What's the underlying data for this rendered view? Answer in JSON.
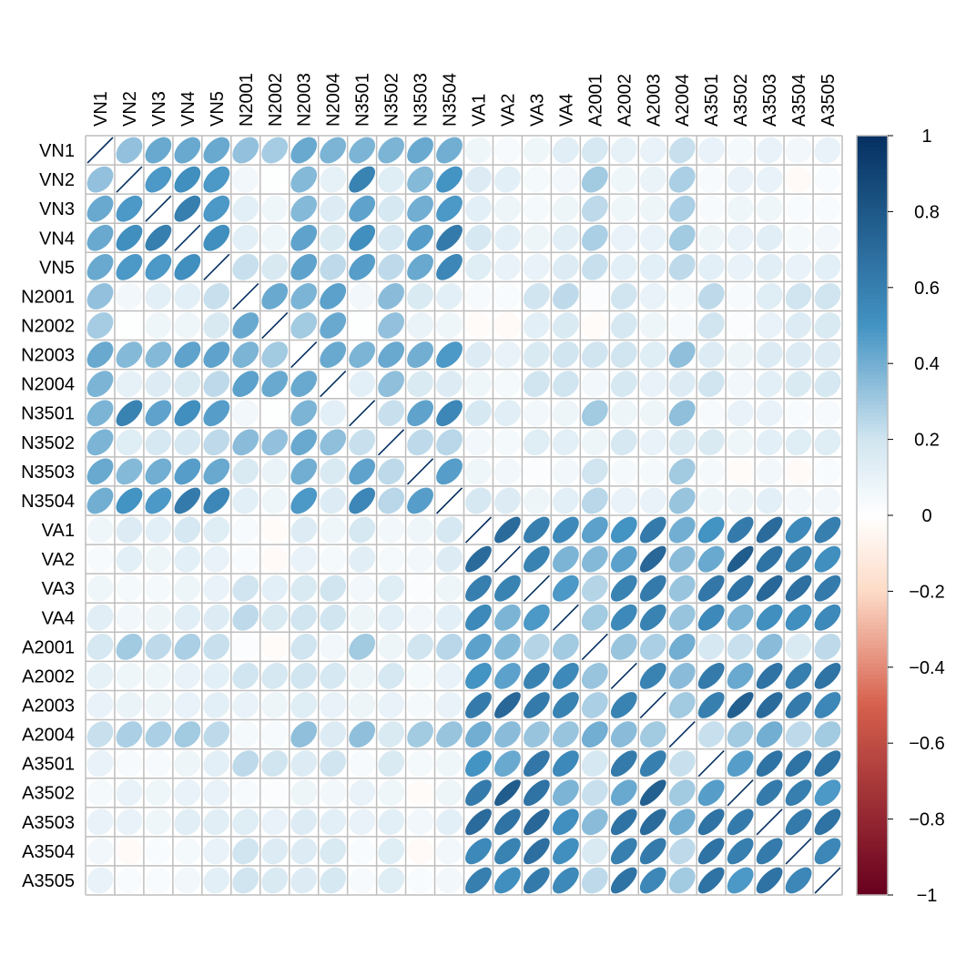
{
  "chart_data": {
    "type": "heatmap",
    "method": "ellipse",
    "variables": [
      "VN1",
      "VN2",
      "VN3",
      "VN4",
      "VN5",
      "N2001",
      "N2002",
      "N2003",
      "N2004",
      "N3501",
      "N3502",
      "N3503",
      "N3504",
      "VA1",
      "VA2",
      "VA3",
      "VA4",
      "A2001",
      "A2002",
      "A2003",
      "A2004",
      "A3501",
      "A3502",
      "A3503",
      "A3504",
      "A3505"
    ],
    "matrix": [
      [
        1,
        0.33,
        0.42,
        0.42,
        0.42,
        0.33,
        0.29,
        0.42,
        0.38,
        0.38,
        0.38,
        0.42,
        0.4,
        0.07,
        0.04,
        0.07,
        0.13,
        0.18,
        0.11,
        0.1,
        0.22,
        0.1,
        0.05,
        0.1,
        0.06,
        0.1
      ],
      [
        0.33,
        1,
        0.48,
        0.52,
        0.48,
        0.06,
        0.01,
        0.36,
        0.11,
        0.58,
        0.14,
        0.36,
        0.5,
        0.15,
        0.12,
        0.05,
        0.06,
        0.3,
        0.07,
        0.09,
        0.28,
        0.04,
        0.1,
        0.1,
        -0.03,
        0.03
      ],
      [
        0.42,
        0.48,
        1,
        0.6,
        0.48,
        0.12,
        0.07,
        0.36,
        0.15,
        0.44,
        0.18,
        0.4,
        0.48,
        0.12,
        0.08,
        0.05,
        0.08,
        0.24,
        0.07,
        0.08,
        0.28,
        0.04,
        0.07,
        0.07,
        0.03,
        0.03
      ],
      [
        0.42,
        0.52,
        0.6,
        1,
        0.52,
        0.12,
        0.07,
        0.44,
        0.16,
        0.52,
        0.18,
        0.46,
        0.62,
        0.18,
        0.12,
        0.08,
        0.13,
        0.28,
        0.1,
        0.1,
        0.3,
        0.08,
        0.1,
        0.13,
        0.05,
        0.06
      ],
      [
        0.42,
        0.48,
        0.48,
        0.52,
        1,
        0.22,
        0.17,
        0.44,
        0.24,
        0.46,
        0.24,
        0.42,
        0.56,
        0.14,
        0.1,
        0.1,
        0.15,
        0.22,
        0.12,
        0.12,
        0.24,
        0.12,
        0.1,
        0.13,
        0.1,
        0.12
      ],
      [
        0.33,
        0.06,
        0.12,
        0.12,
        0.22,
        1,
        0.42,
        0.38,
        0.45,
        0.06,
        0.35,
        0.16,
        0.12,
        0.04,
        0.03,
        0.2,
        0.24,
        0.02,
        0.2,
        0.1,
        0.05,
        0.24,
        0.04,
        0.14,
        0.2,
        0.2
      ],
      [
        0.29,
        0.01,
        0.07,
        0.07,
        0.17,
        0.42,
        1,
        0.3,
        0.42,
        0.01,
        0.33,
        0.09,
        0.07,
        -0.02,
        -0.03,
        0.12,
        0.16,
        -0.02,
        0.18,
        0.08,
        0.04,
        0.2,
        0.02,
        0.1,
        0.15,
        0.16
      ],
      [
        0.42,
        0.36,
        0.36,
        0.44,
        0.44,
        0.38,
        0.3,
        1,
        0.42,
        0.38,
        0.42,
        0.4,
        0.48,
        0.15,
        0.1,
        0.16,
        0.2,
        0.2,
        0.2,
        0.14,
        0.34,
        0.15,
        0.08,
        0.15,
        0.15,
        0.15
      ],
      [
        0.38,
        0.11,
        0.15,
        0.16,
        0.24,
        0.45,
        0.42,
        0.42,
        1,
        0.12,
        0.34,
        0.16,
        0.15,
        0.07,
        0.05,
        0.2,
        0.2,
        0.06,
        0.18,
        0.1,
        0.15,
        0.2,
        0.06,
        0.12,
        0.16,
        0.18
      ],
      [
        0.38,
        0.58,
        0.44,
        0.52,
        0.46,
        0.06,
        0.01,
        0.38,
        0.12,
        1,
        0.22,
        0.44,
        0.56,
        0.18,
        0.13,
        0.06,
        0.08,
        0.3,
        0.08,
        0.08,
        0.34,
        0.04,
        0.1,
        0.1,
        0.03,
        0.04
      ],
      [
        0.38,
        0.14,
        0.18,
        0.18,
        0.24,
        0.35,
        0.33,
        0.42,
        0.34,
        0.22,
        1,
        0.24,
        0.25,
        0.06,
        0.05,
        0.14,
        0.12,
        0.08,
        0.18,
        0.1,
        0.16,
        0.16,
        0.07,
        0.12,
        0.14,
        0.14
      ],
      [
        0.42,
        0.36,
        0.4,
        0.46,
        0.42,
        0.16,
        0.09,
        0.4,
        0.16,
        0.44,
        0.24,
        1,
        0.46,
        0.07,
        0.06,
        0.02,
        0.06,
        0.2,
        0.05,
        0.05,
        0.3,
        0.05,
        -0.02,
        0.06,
        -0.03,
        0.03
      ],
      [
        0.4,
        0.5,
        0.48,
        0.62,
        0.56,
        0.12,
        0.07,
        0.48,
        0.15,
        0.56,
        0.25,
        0.46,
        1,
        0.18,
        0.15,
        0.08,
        0.12,
        0.25,
        0.1,
        0.1,
        0.32,
        0.07,
        0.08,
        0.12,
        0.06,
        0.06
      ],
      [
        0.07,
        0.15,
        0.12,
        0.18,
        0.14,
        0.04,
        -0.02,
        0.15,
        0.07,
        0.18,
        0.06,
        0.07,
        0.18,
        1,
        0.7,
        0.6,
        0.55,
        0.45,
        0.5,
        0.62,
        0.4,
        0.5,
        0.62,
        0.7,
        0.55,
        0.6
      ],
      [
        0.04,
        0.12,
        0.08,
        0.12,
        0.1,
        0.03,
        -0.03,
        0.1,
        0.05,
        0.13,
        0.05,
        0.06,
        0.15,
        0.7,
        1,
        0.58,
        0.38,
        0.36,
        0.45,
        0.72,
        0.35,
        0.42,
        0.78,
        0.66,
        0.58,
        0.52
      ],
      [
        0.07,
        0.05,
        0.05,
        0.08,
        0.1,
        0.2,
        0.12,
        0.16,
        0.2,
        0.06,
        0.14,
        0.02,
        0.08,
        0.6,
        0.58,
        1,
        0.48,
        0.26,
        0.58,
        0.62,
        0.32,
        0.64,
        0.66,
        0.72,
        0.68,
        0.62
      ],
      [
        0.13,
        0.06,
        0.08,
        0.13,
        0.15,
        0.24,
        0.16,
        0.2,
        0.2,
        0.08,
        0.12,
        0.06,
        0.12,
        0.55,
        0.38,
        0.48,
        1,
        0.3,
        0.55,
        0.58,
        0.32,
        0.55,
        0.38,
        0.52,
        0.52,
        0.55
      ],
      [
        0.18,
        0.3,
        0.24,
        0.28,
        0.22,
        0.02,
        -0.02,
        0.2,
        0.06,
        0.3,
        0.08,
        0.2,
        0.25,
        0.45,
        0.36,
        0.26,
        0.3,
        1,
        0.32,
        0.28,
        0.4,
        0.18,
        0.22,
        0.35,
        0.16,
        0.24
      ],
      [
        0.11,
        0.07,
        0.07,
        0.1,
        0.12,
        0.2,
        0.18,
        0.2,
        0.18,
        0.08,
        0.18,
        0.05,
        0.1,
        0.5,
        0.45,
        0.58,
        0.55,
        0.32,
        1,
        0.58,
        0.35,
        0.62,
        0.42,
        0.66,
        0.6,
        0.66
      ],
      [
        0.1,
        0.09,
        0.08,
        0.1,
        0.12,
        0.1,
        0.08,
        0.14,
        0.1,
        0.08,
        0.1,
        0.05,
        0.1,
        0.62,
        0.72,
        0.62,
        0.58,
        0.28,
        0.58,
        1,
        0.3,
        0.6,
        0.76,
        0.7,
        0.62,
        0.56
      ],
      [
        0.22,
        0.28,
        0.28,
        0.3,
        0.24,
        0.05,
        0.04,
        0.34,
        0.15,
        0.34,
        0.16,
        0.3,
        0.32,
        0.4,
        0.35,
        0.32,
        0.32,
        0.4,
        0.35,
        0.3,
        1,
        0.22,
        0.3,
        0.4,
        0.24,
        0.3
      ],
      [
        0.1,
        0.04,
        0.04,
        0.08,
        0.12,
        0.24,
        0.2,
        0.15,
        0.2,
        0.04,
        0.16,
        0.05,
        0.07,
        0.5,
        0.42,
        0.64,
        0.55,
        0.18,
        0.62,
        0.6,
        0.22,
        1,
        0.46,
        0.66,
        0.66,
        0.66
      ],
      [
        0.05,
        0.1,
        0.07,
        0.1,
        0.1,
        0.04,
        0.02,
        0.08,
        0.06,
        0.1,
        0.07,
        -0.02,
        0.08,
        0.62,
        0.78,
        0.66,
        0.38,
        0.22,
        0.42,
        0.76,
        0.3,
        0.46,
        1,
        0.62,
        0.6,
        0.48
      ],
      [
        0.1,
        0.1,
        0.07,
        0.13,
        0.13,
        0.14,
        0.1,
        0.15,
        0.12,
        0.1,
        0.12,
        0.06,
        0.12,
        0.7,
        0.66,
        0.72,
        0.52,
        0.35,
        0.66,
        0.7,
        0.4,
        0.66,
        0.62,
        1,
        0.62,
        0.66
      ],
      [
        0.06,
        -0.03,
        0.03,
        0.05,
        0.1,
        0.2,
        0.15,
        0.15,
        0.16,
        0.03,
        0.14,
        -0.03,
        0.06,
        0.55,
        0.58,
        0.68,
        0.52,
        0.16,
        0.6,
        0.62,
        0.24,
        0.66,
        0.6,
        0.62,
        1,
        0.56
      ],
      [
        0.1,
        0.03,
        0.03,
        0.06,
        0.12,
        0.2,
        0.16,
        0.15,
        0.18,
        0.04,
        0.14,
        0.03,
        0.06,
        0.6,
        0.52,
        0.62,
        0.55,
        0.24,
        0.66,
        0.56,
        0.3,
        0.66,
        0.48,
        0.66,
        0.56,
        1
      ]
    ],
    "colorbar": {
      "range": [
        -1,
        1
      ],
      "ticks": [
        "1",
        "0.8",
        "0.6",
        "0.4",
        "0.2",
        "0",
        "−0.2",
        "−0.4",
        "−0.6",
        "−0.8",
        "−1"
      ]
    },
    "colors": {
      "neg_strong": "#67001F",
      "neg_mid": "#D6604D",
      "neg_light": "#FDDBC7",
      "neutral": "#FFFFFF",
      "pos_light": "#D1E5F0",
      "pos_mid": "#4393C3",
      "pos_strong": "#053061",
      "grid": "#BEBEBE"
    }
  }
}
